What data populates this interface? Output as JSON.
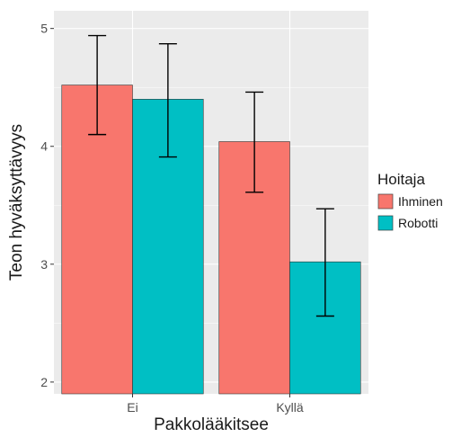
{
  "chart_data": {
    "type": "bar",
    "title": "",
    "xlabel": "Pakkolääkitsee",
    "ylabel": "Teon hyväksyttävyys",
    "categories": [
      "Ei",
      "Kyllä"
    ],
    "ylim": [
      1.9,
      5.15
    ],
    "yticks": [
      2,
      3,
      4,
      5
    ],
    "grid": true,
    "legend": {
      "title": "Hoitaja",
      "placement": "right"
    },
    "series": [
      {
        "name": "Ihminen",
        "color": "#F8766D",
        "values": [
          4.52,
          4.04
        ],
        "err_low": [
          4.1,
          3.61
        ],
        "err_high": [
          4.94,
          4.46
        ]
      },
      {
        "name": "Robotti",
        "color": "#00BFC4",
        "values": [
          4.4,
          3.02
        ],
        "err_low": [
          3.91,
          2.56
        ],
        "err_high": [
          4.87,
          3.47
        ]
      }
    ]
  }
}
